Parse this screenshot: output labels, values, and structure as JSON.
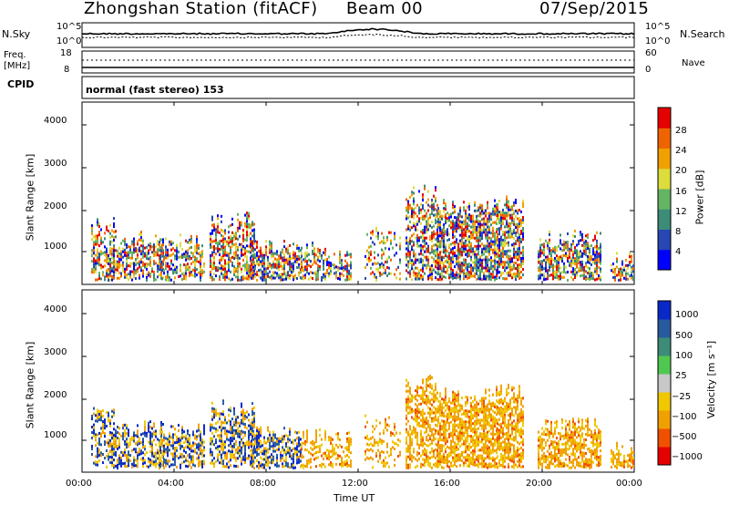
{
  "header": {
    "station": "Zhongshan Station (fitACF)",
    "beam": "Beam 00",
    "date": "07/Sep/2015"
  },
  "strip1": {
    "left_label": "N.Sky",
    "left_ticks": [
      "10^5",
      "10^0"
    ],
    "right_ticks": [
      "10^5",
      "10^0"
    ],
    "right_label": "N.Search"
  },
  "strip2": {
    "left_label_top": "Freq.",
    "left_label_unit": "[MHz]",
    "left_ticks": [
      "18",
      "8"
    ],
    "right_ticks": [
      "60",
      "0"
    ],
    "right_label": "Nave"
  },
  "cpid": {
    "label": "CPID",
    "mode": "normal (fast stereo) 153"
  },
  "axes": {
    "ylabel": "Slant Range [km]",
    "xlabel": "Time UT",
    "yticks": [
      "4000",
      "3000",
      "2000",
      "1000"
    ],
    "xticks": [
      "00:00",
      "04:00",
      "08:00",
      "12:00",
      "16:00",
      "20:00",
      "00:00"
    ]
  },
  "chart_data": [
    {
      "type": "heatmap",
      "title": "",
      "xlabel": "Time UT",
      "ylabel": "Slant Range [km]",
      "xlim": [
        0,
        24
      ],
      "ylim": [
        180,
        4600
      ],
      "colorbar": {
        "label": "Power [dB]",
        "ticks": [
          "28",
          "24",
          "20",
          "16",
          "12",
          "8",
          "4"
        ],
        "range": [
          0,
          32
        ],
        "colors": [
          "#0000ff",
          "#2846b4",
          "#3c8c78",
          "#64b464",
          "#dcdc3c",
          "#f0a000",
          "#f06400",
          "#e60000"
        ]
      }
    },
    {
      "type": "heatmap",
      "title": "",
      "xlabel": "Time UT",
      "ylabel": "Slant Range [km]",
      "xlim": [
        0,
        24
      ],
      "ylim": [
        180,
        4600
      ],
      "colorbar": {
        "label": "Velocity [m s⁻¹]",
        "ticks": [
          "1000",
          "500",
          "100",
          "25",
          "−25",
          "−100",
          "−500",
          "−1000"
        ],
        "range": [
          -1200,
          1200
        ],
        "colors": [
          "#e60000",
          "#f05000",
          "#f0a000",
          "#f0c800",
          "#c8c8c8",
          "#50c850",
          "#3c8c78",
          "#285aa0",
          "#0a28c8"
        ]
      }
    }
  ]
}
